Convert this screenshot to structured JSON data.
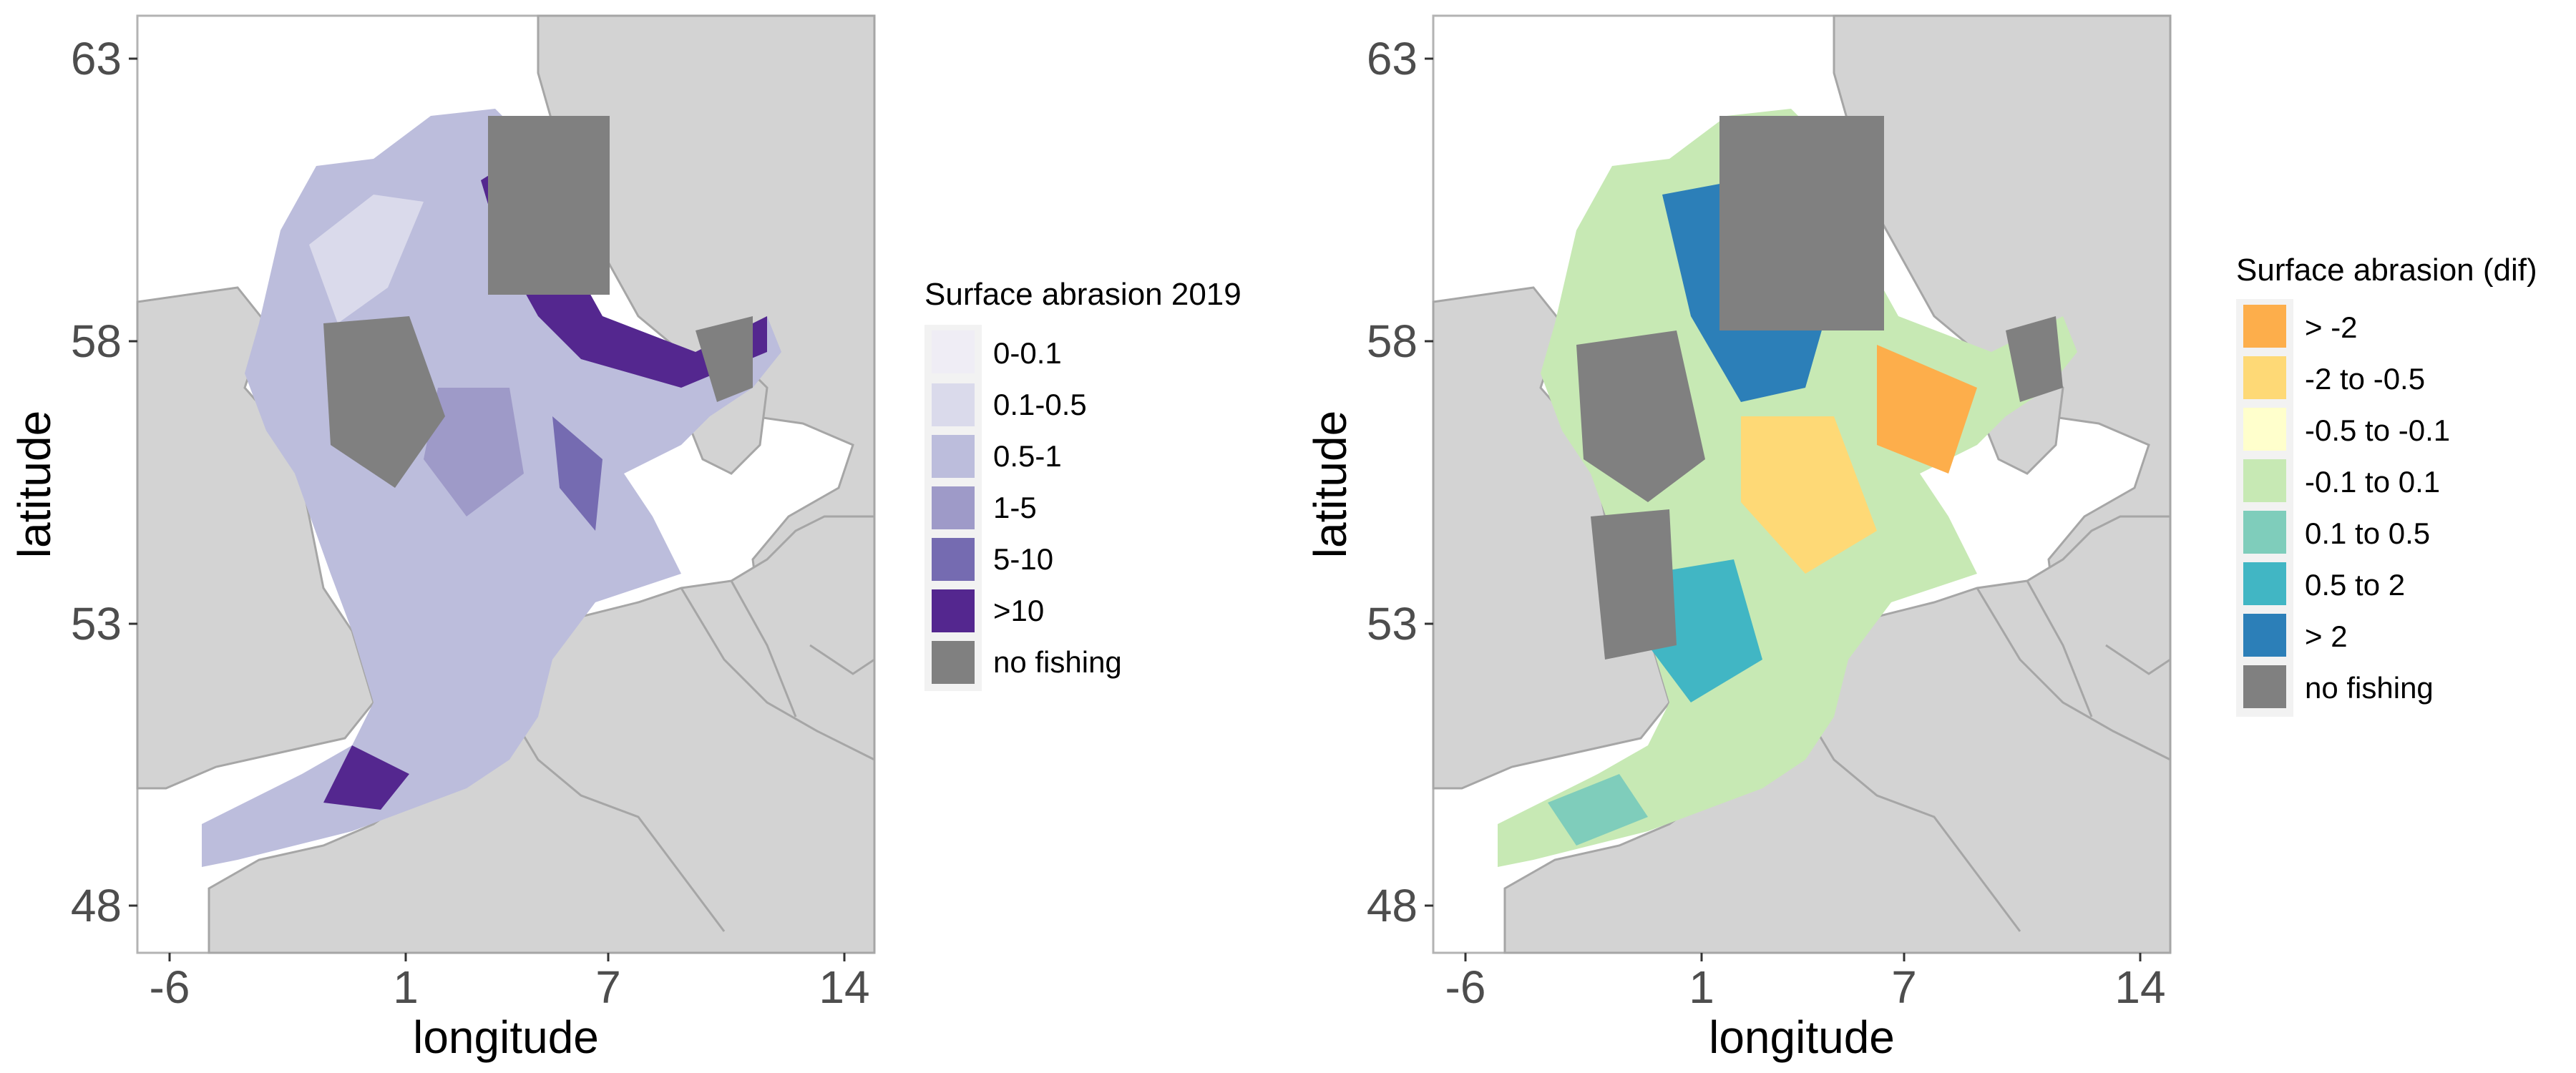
{
  "panels": [
    {
      "id": "left",
      "legend_title": "Surface abrasion 2019",
      "legend_items": [
        {
          "label": "0-0.1",
          "color": "#efedf5"
        },
        {
          "label": "0.1-0.5",
          "color": "#dadaeb"
        },
        {
          "label": "0.5-1",
          "color": "#bcbddc"
        },
        {
          "label": "1-5",
          "color": "#9e9ac8"
        },
        {
          "label": "5-10",
          "color": "#756bb1"
        },
        {
          "label": ">10",
          "color": "#54278f"
        },
        {
          "label": "no fishing",
          "color": "#808080"
        }
      ]
    },
    {
      "id": "right",
      "legend_title": "Surface abrasion (dif)",
      "legend_items": [
        {
          "label": "> -2",
          "color": "#fdae4b"
        },
        {
          "label": "-2 to -0.5",
          "color": "#fed976"
        },
        {
          "label": "-0.5 to -0.1",
          "color": "#ffffcc"
        },
        {
          "label": "-0.1 to 0.1",
          "color": "#c7e9b4"
        },
        {
          "label": "0.1 to 0.5",
          "color": "#7fcdbb"
        },
        {
          "label": "0.5 to 2",
          "color": "#41b6c4"
        },
        {
          "label": "> 2",
          "color": "#2c7fb8"
        },
        {
          "label": "no fishing",
          "color": "#808080"
        }
      ]
    }
  ],
  "axes": {
    "xlabel": "longitude",
    "ylabel": "latitude",
    "x_ticks": [
      "-6",
      "1",
      "7",
      "14"
    ],
    "y_ticks": [
      "63",
      "58",
      "53",
      "48"
    ]
  },
  "colors": {
    "land": "#d3d3d3",
    "coast_line": "#a6a6a6",
    "sea": "#ffffff",
    "no_fishing": "#808080"
  }
}
